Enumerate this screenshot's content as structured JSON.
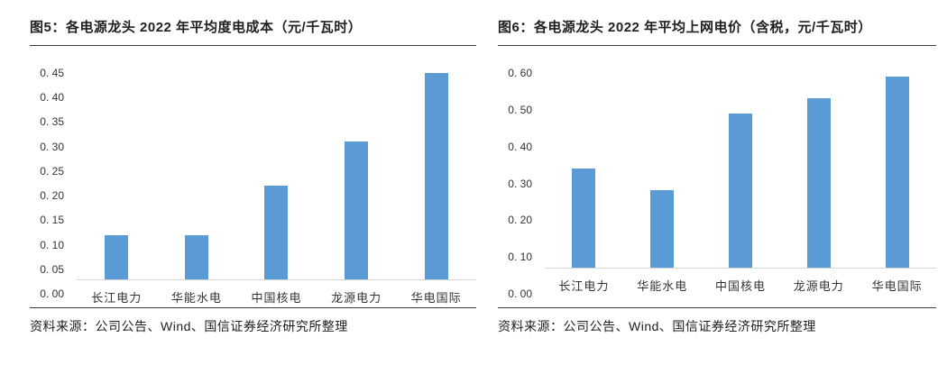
{
  "figures": [
    {
      "id": "figure5",
      "title": "图5：各电源龙头 2022 年平均度电成本（元/千瓦时）",
      "source": "资料来源：公司公告、Wind、国信证券经济研究所整理"
    },
    {
      "id": "figure6",
      "title": "图6：各电源龙头 2022 年平均上网电价（含税，元/千瓦时）",
      "source": "资料来源：公司公告、Wind、国信证券经济研究所整理"
    }
  ],
  "chart_data": [
    {
      "type": "bar",
      "title": "各电源龙头2022年平均度电成本（元/千瓦时）",
      "categories": [
        "长江电力",
        "华能水电",
        "中国核电",
        "龙源电力",
        "华电国际"
      ],
      "values": [
        0.09,
        0.09,
        0.19,
        0.28,
        0.42
      ],
      "xlabel": "",
      "ylabel": "",
      "ylim": [
        0,
        0.45
      ],
      "ytick_step": 0.05,
      "ytick_labels": [
        "0. 00",
        "0. 05",
        "0. 10",
        "0. 15",
        "0. 20",
        "0. 25",
        "0. 30",
        "0. 35",
        "0. 40",
        "0. 45"
      ],
      "bar_color": "#5b9bd5",
      "grid": false,
      "legend": "none"
    },
    {
      "type": "bar",
      "title": "各电源龙头2022年平均上网电价（含税，元/千瓦时）",
      "categories": [
        "长江电力",
        "华能水电",
        "中国核电",
        "龙源电力",
        "华电国际"
      ],
      "values": [
        0.27,
        0.21,
        0.42,
        0.46,
        0.52
      ],
      "xlabel": "",
      "ylabel": "",
      "ylim": [
        0,
        0.6
      ],
      "ytick_step": 0.1,
      "ytick_labels": [
        "0. 00",
        "0. 10",
        "0. 20",
        "0. 30",
        "0. 40",
        "0. 50",
        "0. 60"
      ],
      "bar_color": "#5b9bd5",
      "grid": false,
      "legend": "none"
    }
  ],
  "colors": {
    "bar": "#5b9bd5",
    "baseline": "#d6d6d6",
    "rule": "#3c3c3c",
    "text": "#1f1f1f"
  }
}
